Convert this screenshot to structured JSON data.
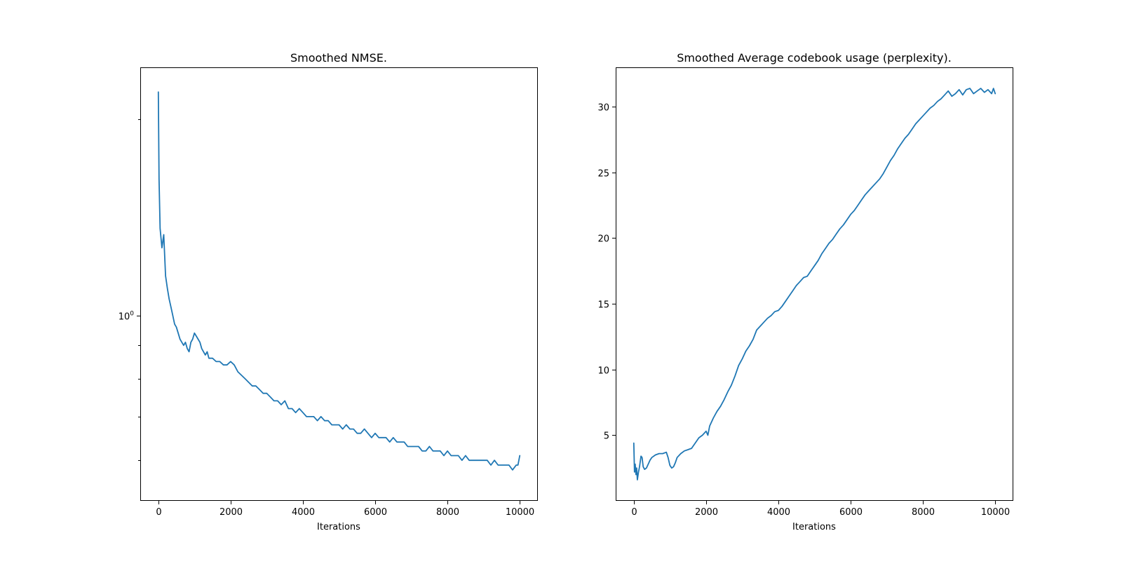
{
  "chart_data": [
    {
      "type": "line",
      "title": "Smoothed NMSE.",
      "xlabel": "Iterations",
      "ylabel": "",
      "yscale": "log",
      "xlim": [
        -500,
        10500
      ],
      "ylim": [
        0.52,
        2.4
      ],
      "xticks": [
        0,
        2000,
        4000,
        6000,
        8000,
        10000
      ],
      "xtick_labels": [
        "0",
        "2000",
        "4000",
        "6000",
        "8000",
        "10000"
      ],
      "yticks_major": [
        1
      ],
      "ytick_labels": [
        "10^0"
      ],
      "yticks_minor": [
        0.6,
        0.7,
        0.8,
        0.9,
        2
      ],
      "grid": false,
      "color": "#1f77b4",
      "series": [
        {
          "x": [
            0,
            20,
            50,
            100,
            150,
            200,
            250,
            300,
            350,
            400,
            450,
            500,
            550,
            600,
            650,
            700,
            750,
            800,
            850,
            900,
            950,
            1000,
            1050,
            1100,
            1150,
            1200,
            1250,
            1300,
            1350,
            1400,
            1500,
            1600,
            1700,
            1800,
            1900,
            2000,
            2100,
            2200,
            2300,
            2400,
            2500,
            2600,
            2700,
            2800,
            2900,
            3000,
            3100,
            3200,
            3300,
            3400,
            3500,
            3600,
            3700,
            3800,
            3900,
            4000,
            4100,
            4200,
            4300,
            4400,
            4500,
            4600,
            4700,
            4800,
            4900,
            5000,
            5100,
            5200,
            5300,
            5400,
            5500,
            5600,
            5700,
            5800,
            5900,
            6000,
            6100,
            6200,
            6300,
            6400,
            6500,
            6600,
            6700,
            6800,
            6900,
            7000,
            7100,
            7200,
            7300,
            7400,
            7500,
            7600,
            7700,
            7800,
            7900,
            8000,
            8100,
            8200,
            8300,
            8400,
            8500,
            8600,
            8700,
            8800,
            8900,
            9000,
            9100,
            9200,
            9300,
            9400,
            9500,
            9600,
            9700,
            9800,
            9900,
            9950,
            10000
          ],
          "y": [
            2.2,
            1.62,
            1.36,
            1.27,
            1.33,
            1.15,
            1.1,
            1.06,
            1.03,
            1.0,
            0.97,
            0.96,
            0.94,
            0.92,
            0.91,
            0.9,
            0.91,
            0.89,
            0.88,
            0.91,
            0.92,
            0.94,
            0.93,
            0.92,
            0.91,
            0.89,
            0.88,
            0.87,
            0.88,
            0.86,
            0.86,
            0.85,
            0.85,
            0.84,
            0.84,
            0.85,
            0.84,
            0.82,
            0.81,
            0.8,
            0.79,
            0.78,
            0.78,
            0.77,
            0.76,
            0.76,
            0.75,
            0.74,
            0.74,
            0.73,
            0.74,
            0.72,
            0.72,
            0.71,
            0.72,
            0.71,
            0.7,
            0.7,
            0.7,
            0.69,
            0.7,
            0.69,
            0.69,
            0.68,
            0.68,
            0.68,
            0.67,
            0.68,
            0.67,
            0.67,
            0.66,
            0.66,
            0.67,
            0.66,
            0.65,
            0.66,
            0.65,
            0.65,
            0.65,
            0.64,
            0.65,
            0.64,
            0.64,
            0.64,
            0.63,
            0.63,
            0.63,
            0.63,
            0.62,
            0.62,
            0.63,
            0.62,
            0.62,
            0.62,
            0.61,
            0.62,
            0.61,
            0.61,
            0.61,
            0.6,
            0.61,
            0.6,
            0.6,
            0.6,
            0.6,
            0.6,
            0.6,
            0.59,
            0.6,
            0.59,
            0.59,
            0.59,
            0.59,
            0.58,
            0.59,
            0.59,
            0.61
          ]
        }
      ]
    },
    {
      "type": "line",
      "title": "Smoothed Average codebook usage (perplexity).",
      "xlabel": "Iterations",
      "ylabel": "",
      "yscale": "linear",
      "xlim": [
        -500,
        10500
      ],
      "ylim": [
        0,
        33
      ],
      "xticks": [
        0,
        2000,
        4000,
        6000,
        8000,
        10000
      ],
      "xtick_labels": [
        "0",
        "2000",
        "4000",
        "6000",
        "8000",
        "10000"
      ],
      "yticks": [
        5,
        10,
        15,
        20,
        25,
        30
      ],
      "ytick_labels": [
        "5",
        "10",
        "15",
        "20",
        "25",
        "30"
      ],
      "grid": false,
      "color": "#1f77b4",
      "series": [
        {
          "x": [
            0,
            20,
            40,
            60,
            80,
            100,
            130,
            160,
            200,
            230,
            260,
            300,
            350,
            400,
            450,
            500,
            600,
            700,
            800,
            900,
            950,
            1000,
            1050,
            1100,
            1150,
            1200,
            1300,
            1400,
            1500,
            1600,
            1700,
            1800,
            1900,
            2000,
            2050,
            2100,
            2200,
            2300,
            2400,
            2500,
            2600,
            2700,
            2800,
            2900,
            3000,
            3100,
            3200,
            3300,
            3400,
            3500,
            3600,
            3700,
            3800,
            3900,
            4000,
            4100,
            4200,
            4300,
            4400,
            4500,
            4600,
            4700,
            4800,
            4900,
            5000,
            5100,
            5200,
            5300,
            5400,
            5500,
            5600,
            5700,
            5800,
            5900,
            6000,
            6100,
            6200,
            6300,
            6400,
            6500,
            6600,
            6700,
            6800,
            6900,
            7000,
            7100,
            7200,
            7300,
            7400,
            7500,
            7600,
            7700,
            7800,
            7900,
            8000,
            8100,
            8200,
            8300,
            8400,
            8500,
            8600,
            8700,
            8800,
            8900,
            9000,
            9100,
            9200,
            9300,
            9400,
            9500,
            9600,
            9700,
            9800,
            9900,
            9950,
            10000
          ],
          "y": [
            4.4,
            2.2,
            2.8,
            2.0,
            2.5,
            1.6,
            2.2,
            2.6,
            3.4,
            3.3,
            2.6,
            2.4,
            2.5,
            2.8,
            3.1,
            3.3,
            3.5,
            3.6,
            3.6,
            3.7,
            3.3,
            2.7,
            2.5,
            2.6,
            2.9,
            3.3,
            3.6,
            3.8,
            3.9,
            4.0,
            4.4,
            4.8,
            5.0,
            5.3,
            5.0,
            5.7,
            6.3,
            6.8,
            7.2,
            7.7,
            8.3,
            8.8,
            9.5,
            10.3,
            10.8,
            11.4,
            11.8,
            12.3,
            13.0,
            13.3,
            13.6,
            13.9,
            14.1,
            14.4,
            14.5,
            14.8,
            15.2,
            15.6,
            16.0,
            16.4,
            16.7,
            17.0,
            17.1,
            17.5,
            17.9,
            18.3,
            18.8,
            19.2,
            19.6,
            19.9,
            20.3,
            20.7,
            21.0,
            21.4,
            21.8,
            22.1,
            22.5,
            22.9,
            23.3,
            23.6,
            23.9,
            24.2,
            24.5,
            24.9,
            25.4,
            25.9,
            26.3,
            26.8,
            27.2,
            27.6,
            27.9,
            28.3,
            28.7,
            29.0,
            29.3,
            29.6,
            29.9,
            30.1,
            30.4,
            30.6,
            30.9,
            31.2,
            30.8,
            31.0,
            31.3,
            30.9,
            31.3,
            31.4,
            31.0,
            31.2,
            31.4,
            31.1,
            31.3,
            31.0,
            31.4,
            31.0
          ]
        }
      ]
    }
  ]
}
